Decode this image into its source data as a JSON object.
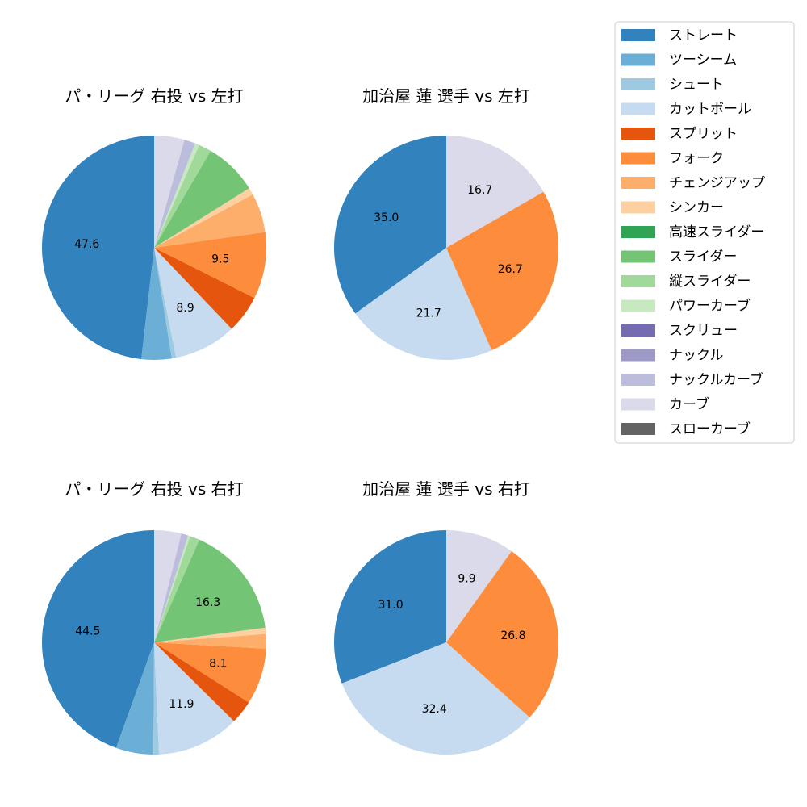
{
  "legend": {
    "items": [
      {
        "label": "ストレート",
        "color": "#3182bd"
      },
      {
        "label": "ツーシーム",
        "color": "#6baed6"
      },
      {
        "label": "シュート",
        "color": "#9ecae1"
      },
      {
        "label": "カットボール",
        "color": "#c6dbef"
      },
      {
        "label": "スプリット",
        "color": "#e6550d"
      },
      {
        "label": "フォーク",
        "color": "#fd8d3c"
      },
      {
        "label": "チェンジアップ",
        "color": "#fdae6b"
      },
      {
        "label": "シンカー",
        "color": "#fdd0a2"
      },
      {
        "label": "高速スライダー",
        "color": "#31a354"
      },
      {
        "label": "スライダー",
        "color": "#74c476"
      },
      {
        "label": "縦スライダー",
        "color": "#a1d99b"
      },
      {
        "label": "パワーカーブ",
        "color": "#c7e9c0"
      },
      {
        "label": "スクリュー",
        "color": "#756bb1"
      },
      {
        "label": "ナックル",
        "color": "#9e9ac8"
      },
      {
        "label": "ナックルカーブ",
        "color": "#bcbddc"
      },
      {
        "label": "カーブ",
        "color": "#dadaeb"
      },
      {
        "label": "スローカーブ",
        "color": "#636363"
      }
    ]
  },
  "chart_data": [
    {
      "type": "pie",
      "title": "パ・リーグ 右投 vs 左打",
      "slices": [
        {
          "pitch": "ストレート",
          "value": 47.6,
          "label": "47.6"
        },
        {
          "pitch": "ツーシーム",
          "value": 4.3,
          "label": ""
        },
        {
          "pitch": "シュート",
          "value": 0.6,
          "label": ""
        },
        {
          "pitch": "カットボール",
          "value": 8.9,
          "label": "8.9"
        },
        {
          "pitch": "スプリット",
          "value": 5.4,
          "label": ""
        },
        {
          "pitch": "フォーク",
          "value": 9.5,
          "label": "9.5"
        },
        {
          "pitch": "チェンジアップ",
          "value": 5.6,
          "label": ""
        },
        {
          "pitch": "シンカー",
          "value": 1.0,
          "label": ""
        },
        {
          "pitch": "スライダー",
          "value": 7.6,
          "label": ""
        },
        {
          "pitch": "縦スライダー",
          "value": 1.8,
          "label": ""
        },
        {
          "pitch": "パワーカーブ",
          "value": 0.6,
          "label": ""
        },
        {
          "pitch": "ナックルカーブ",
          "value": 1.6,
          "label": ""
        },
        {
          "pitch": "カーブ",
          "value": 4.3,
          "label": ""
        }
      ]
    },
    {
      "type": "pie",
      "title": "加治屋 蓮 選手 vs 左打",
      "slices": [
        {
          "pitch": "ストレート",
          "value": 35.0,
          "label": "35.0"
        },
        {
          "pitch": "カットボール",
          "value": 21.7,
          "label": "21.7"
        },
        {
          "pitch": "フォーク",
          "value": 26.7,
          "label": "26.7"
        },
        {
          "pitch": "カーブ",
          "value": 16.7,
          "label": "16.7"
        }
      ]
    },
    {
      "type": "pie",
      "title": "パ・リーグ 右投 vs 右打",
      "slices": [
        {
          "pitch": "ストレート",
          "value": 44.5,
          "label": "44.5"
        },
        {
          "pitch": "ツーシーム",
          "value": 5.4,
          "label": ""
        },
        {
          "pitch": "シュート",
          "value": 0.8,
          "label": ""
        },
        {
          "pitch": "カットボール",
          "value": 11.9,
          "label": "11.9"
        },
        {
          "pitch": "スプリット",
          "value": 3.4,
          "label": ""
        },
        {
          "pitch": "フォーク",
          "value": 8.1,
          "label": "8.1"
        },
        {
          "pitch": "チェンジアップ",
          "value": 2.1,
          "label": ""
        },
        {
          "pitch": "シンカー",
          "value": 0.9,
          "label": ""
        },
        {
          "pitch": "スライダー",
          "value": 16.3,
          "label": "16.3"
        },
        {
          "pitch": "縦スライダー",
          "value": 1.4,
          "label": ""
        },
        {
          "pitch": "パワーカーブ",
          "value": 0.3,
          "label": ""
        },
        {
          "pitch": "ナックルカーブ",
          "value": 1.0,
          "label": ""
        },
        {
          "pitch": "カーブ",
          "value": 3.9,
          "label": ""
        }
      ]
    },
    {
      "type": "pie",
      "title": "加治屋 蓮 選手 vs 右打",
      "slices": [
        {
          "pitch": "ストレート",
          "value": 31.0,
          "label": "31.0"
        },
        {
          "pitch": "カットボール",
          "value": 32.4,
          "label": "32.4"
        },
        {
          "pitch": "フォーク",
          "value": 26.8,
          "label": "26.8"
        },
        {
          "pitch": "カーブ",
          "value": 9.9,
          "label": "9.9"
        }
      ]
    }
  ]
}
